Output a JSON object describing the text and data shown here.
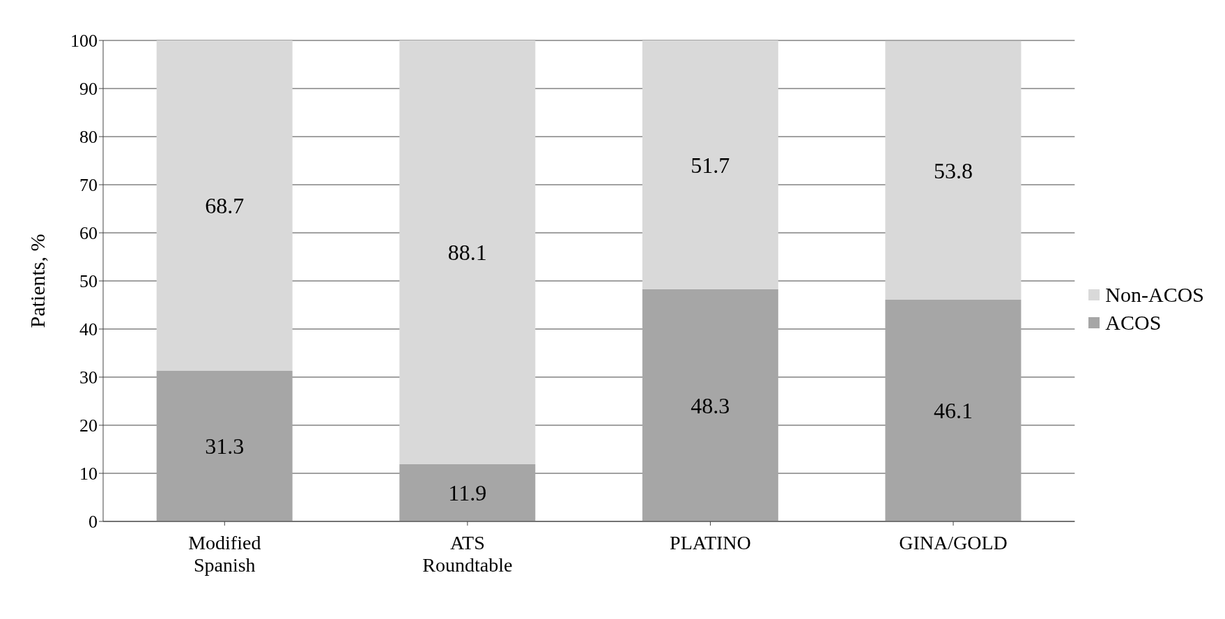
{
  "chart_data": {
    "type": "bar",
    "ylabel": "Patients, %",
    "categories": [
      "Modified Spanish",
      "ATS Roundtable",
      "PLATINO",
      "GINA/GOLD"
    ],
    "stacked": true,
    "series": [
      {
        "name": "ACOS",
        "color": "#a6a6a6",
        "values": [
          31.3,
          11.9,
          48.3,
          46.1
        ]
      },
      {
        "name": "Non-ACOS",
        "color": "#d9d9d9",
        "values": [
          68.7,
          88.1,
          51.7,
          53.8
        ]
      }
    ],
    "ylim": [
      0,
      100
    ],
    "yticks": [
      0,
      10,
      20,
      30,
      40,
      50,
      60,
      70,
      80,
      90,
      100
    ],
    "grid": "y",
    "legend": "right",
    "data_labels": true
  }
}
